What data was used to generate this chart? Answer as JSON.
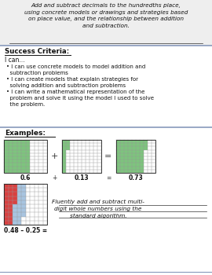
{
  "title_text": "Add and subtract decimals to the hundredths place,\nusing concrete models or drawings and strategies based\non place value, and the relationship between addition\nand subtraction.",
  "success_criteria_header": "Success Criteria:",
  "success_intro": "I can...",
  "bullets": [
    "I can use concrete models to model addition and\n  subtraction problems",
    "I can create models that explain strategies for\n  solving addition and subtraction problems",
    "I can write a mathematical representation of the\n  problem and solve it using the model I used to solve\n  the problem."
  ],
  "examples_header": "Examples:",
  "grid1_label": "0.6",
  "grid2_label": "0.13",
  "grid3_label": "0.73",
  "equation1": "0.48 – 0.25 =",
  "equation2": "Fluently add and subtract multi-\ndigit whole numbers using the\nstandard algorithm.",
  "grid_green": "#7dc47d",
  "grid_blue": "#a8c4e0",
  "grid_red": "#d94040",
  "separator_color": "#8899bb",
  "title_bg": "#eeeeee"
}
